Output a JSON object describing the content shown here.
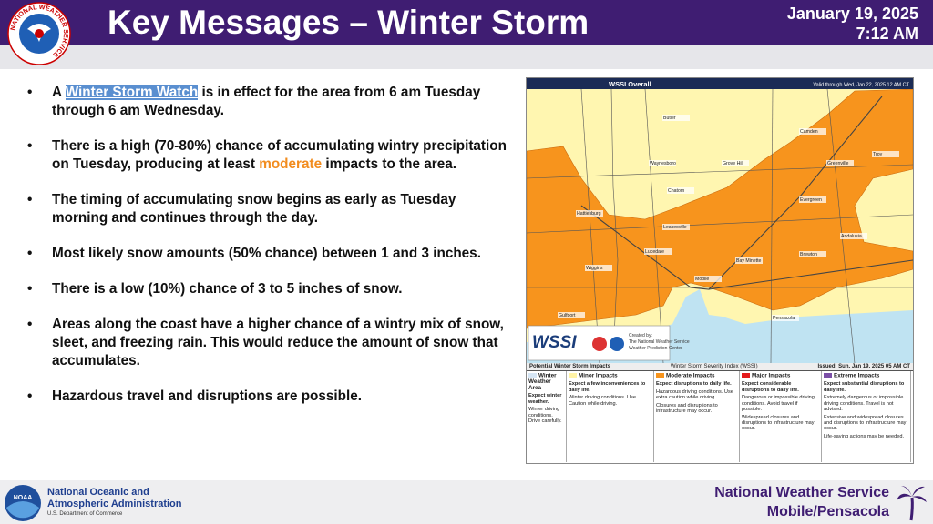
{
  "header": {
    "title": "Key Messages – Winter Storm",
    "date": "January 19, 2025",
    "time": "7:12 AM",
    "logo_text": "NATIONAL WEATHER SERVICE"
  },
  "bullets": [
    [
      "A ",
      "Winter Storm Watch",
      " is in effect for the area from 6 am Tuesday through 6 am Wednesday."
    ],
    [
      "There is a high (70-80%) chance of accumulating wintry precipitation on Tuesday, producing at least ",
      "moderate",
      " impacts to the area."
    ],
    [
      "The timing of accumulating snow begins as early as Tuesday morning and continues through the day."
    ],
    [
      "Most likely snow amounts (50% chance) between 1 and 3 inches."
    ],
    [
      "There is a low (10%) chance of 3 to 5 inches of snow."
    ],
    [
      "Areas along the coast have a higher chance of a wintry mix of snow, sleet, and freezing rain. This would reduce the amount of snow that accumulates."
    ],
    [
      "Hazardous travel and disruptions are possible."
    ]
  ],
  "map": {
    "title": "WSSI Overall",
    "valid": "Valid through Wed, Jan 22, 2025 12 AM CT",
    "cities": [
      "Butler",
      "Camden",
      "Waynesboro",
      "Grove Hill",
      "Greenville",
      "Troy",
      "Chatom",
      "Hattiesburg",
      "Evergreen",
      "Andalusia",
      "Leakesville",
      "Brewton",
      "Lucedale",
      "Bay Minette",
      "Wiggins",
      "Mobile",
      "Gulfport",
      "Pensacola"
    ],
    "logo": {
      "name": "WSSI",
      "created": "Created by:",
      "org": "The National Weather Service",
      "center": "Weather Prediction Center"
    }
  },
  "legend": {
    "title": "Potential Winter Storm Impacts",
    "subtitle": "Winter Storm Severity Index (WSSI)",
    "issued": "Issued: Sun, Jan 19, 2025 05 AM CT",
    "levels": [
      {
        "name": "Winter Weather Area",
        "color": "#d6e6f5",
        "lines": [
          "Expect winter weather.",
          "Winter driving conditions. Drive carefully."
        ]
      },
      {
        "name": "Minor Impacts",
        "color": "#fff3a6",
        "lines": [
          "Expect a few inconveniences to daily life.",
          "Winter driving conditions. Use Caution while driving."
        ]
      },
      {
        "name": "Moderate Impacts",
        "color": "#f7941d",
        "lines": [
          "Expect disruptions to daily life.",
          "Hazardous driving conditions. Use extra caution while driving.",
          "Closures and disruptions to infrastructure may occur."
        ]
      },
      {
        "name": "Major Impacts",
        "color": "#e31a1c",
        "lines": [
          "Expect considerable disruptions to daily life.",
          "Dangerous or impossible driving conditions. Avoid travel if possible.",
          "Widespread closures and disruptions to infrastructure may occur."
        ]
      },
      {
        "name": "Extreme Impacts",
        "color": "#7b4fa6",
        "lines": [
          "Expect substantial disruptions to daily life.",
          "Extremely dangerous or impossible driving conditions. Travel is not advised.",
          "Extensive and widespread closures and disruptions to infrastructure may occur.",
          "Life-saving actions may be needed."
        ]
      }
    ]
  },
  "footer": {
    "noaa_line1": "National Oceanic and",
    "noaa_line2": "Atmospheric Administration",
    "noaa_dept": "U.S. Department of Commerce",
    "nws": "National Weather Service",
    "office": "Mobile/Pensacola",
    "noaa_logo": "NOAA"
  }
}
